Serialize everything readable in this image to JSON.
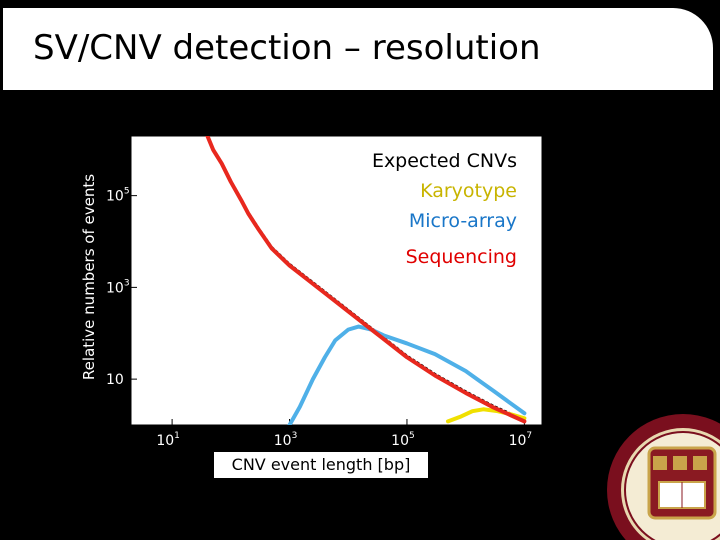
{
  "slide": {
    "title": "SV/CNV detection – resolution"
  },
  "chart_data": {
    "type": "line",
    "xlabel": "CNV event length [bp]",
    "ylabel": "Relative numbers of events",
    "x_scale": "log",
    "y_scale": "log",
    "xlim": [
      1,
      10000000
    ],
    "ylim": [
      1,
      10000000
    ],
    "x_ticks": [
      {
        "base": "10",
        "exp": "1"
      },
      {
        "base": "10",
        "exp": "3"
      },
      {
        "base": "10",
        "exp": "5"
      },
      {
        "base": "10",
        "exp": "7"
      }
    ],
    "y_ticks": [
      {
        "base": "10",
        "exp": ""
      },
      {
        "base": "10",
        "exp": "3"
      },
      {
        "base": "10",
        "exp": "5"
      }
    ],
    "legend_title": "Expected CNVs",
    "legend_position": "top-right",
    "series": [
      {
        "name": "Karyotype",
        "color": "#f0e000",
        "x": [
          500000,
          800000,
          1300000,
          2000000,
          3500000,
          6000000,
          10000000
        ],
        "y": [
          1.2,
          1.5,
          2.0,
          2.2,
          2.0,
          1.7,
          1.4
        ]
      },
      {
        "name": "Micro-array",
        "color": "#4fb0e8",
        "x": [
          1000,
          1500,
          2500,
          4000,
          6000,
          10000,
          15000,
          25000,
          40000,
          100000,
          300000,
          1000000,
          3000000,
          10000000
        ],
        "y": [
          1,
          2.5,
          10,
          30,
          70,
          120,
          140,
          120,
          90,
          60,
          35,
          15,
          5.5,
          1.8
        ]
      },
      {
        "name": "Sequencing",
        "color": "#e8281e",
        "x": [
          30,
          40,
          50,
          70,
          100,
          150,
          200,
          300,
          500,
          1000,
          2000,
          5000,
          10000,
          30000,
          100000,
          300000,
          1000000,
          3000000,
          10000000
        ],
        "y": [
          5000000,
          2000000,
          1000000,
          500000,
          200000,
          80000,
          40000,
          18000,
          7000,
          3000,
          1500,
          600,
          300,
          100,
          30,
          12,
          5,
          2.4,
          1.2
        ]
      }
    ]
  },
  "icons": {
    "seal": "boston-college-seal-icon"
  }
}
